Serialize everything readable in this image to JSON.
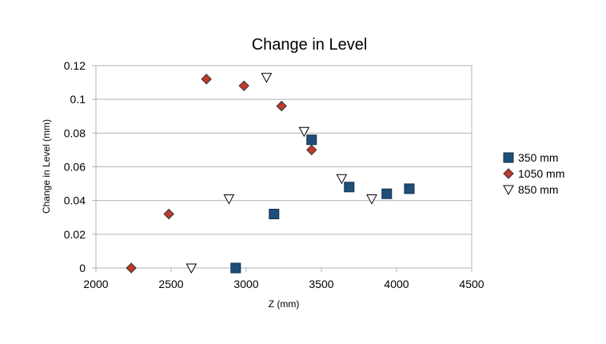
{
  "chart_data": {
    "type": "scatter",
    "title": "Change in Level",
    "xlabel": "Z (mm)",
    "ylabel": "Change in Level (mm)",
    "xlim": [
      2000,
      4500
    ],
    "ylim": [
      0,
      0.12
    ],
    "x_ticks": [
      2000,
      2500,
      3000,
      3500,
      4000,
      4500
    ],
    "y_ticks": [
      0,
      0.02,
      0.04,
      0.06,
      0.08,
      0.1,
      0.12
    ],
    "y_tick_labels": [
      "0",
      "0.02",
      "0.04",
      "0.06",
      "0.08",
      "0.1",
      "0.12"
    ],
    "grid": "horizontal",
    "legend_position": "right",
    "series": [
      {
        "name": "350 mm",
        "marker": "square",
        "color": "#1f4e79",
        "points": [
          {
            "x": 2930,
            "y": 0.0
          },
          {
            "x": 3185,
            "y": 0.032
          },
          {
            "x": 3435,
            "y": 0.076
          },
          {
            "x": 3685,
            "y": 0.048
          },
          {
            "x": 3935,
            "y": 0.044
          },
          {
            "x": 4085,
            "y": 0.047
          }
        ]
      },
      {
        "name": "1050 mm",
        "marker": "diamond",
        "color": "#c0392b",
        "points": [
          {
            "x": 2235,
            "y": 0.0
          },
          {
            "x": 2485,
            "y": 0.032
          },
          {
            "x": 2735,
            "y": 0.112
          },
          {
            "x": 2985,
            "y": 0.108
          },
          {
            "x": 3235,
            "y": 0.096
          },
          {
            "x": 3435,
            "y": 0.07
          }
        ]
      },
      {
        "name": "850 mm",
        "marker": "triangle-down",
        "color": "#ffffff",
        "points": [
          {
            "x": 2635,
            "y": 0.0
          },
          {
            "x": 2885,
            "y": 0.041
          },
          {
            "x": 3135,
            "y": 0.113
          },
          {
            "x": 3385,
            "y": 0.081
          },
          {
            "x": 3635,
            "y": 0.053
          },
          {
            "x": 3835,
            "y": 0.041
          }
        ]
      }
    ]
  }
}
